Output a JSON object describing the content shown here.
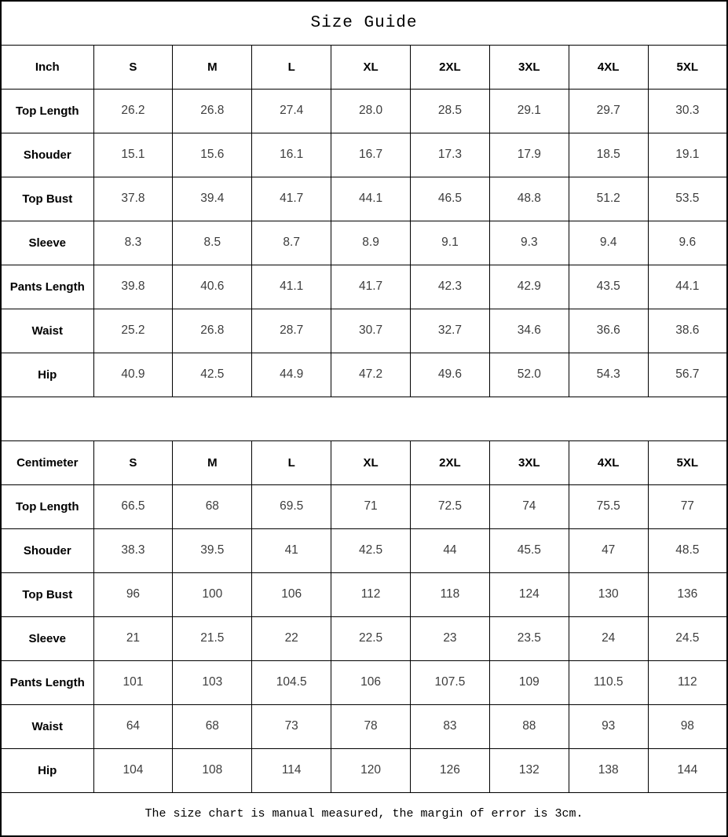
{
  "title": "Size Guide",
  "footer_note": "The size chart is manual measured, the margin of error is 3cm.",
  "colors": {
    "border": "#000000",
    "label_text": "#000000",
    "value_text": "#3d3d3d",
    "background": "#ffffff"
  },
  "tables": [
    {
      "unit_label": "Inch",
      "sizes": [
        "S",
        "M",
        "L",
        "XL",
        "2XL",
        "3XL",
        "4XL",
        "5XL"
      ],
      "rows": [
        {
          "label": "Top Length",
          "values": [
            "26.2",
            "26.8",
            "27.4",
            "28.0",
            "28.5",
            "29.1",
            "29.7",
            "30.3"
          ]
        },
        {
          "label": "Shouder",
          "values": [
            "15.1",
            "15.6",
            "16.1",
            "16.7",
            "17.3",
            "17.9",
            "18.5",
            "19.1"
          ]
        },
        {
          "label": "Top Bust",
          "values": [
            "37.8",
            "39.4",
            "41.7",
            "44.1",
            "46.5",
            "48.8",
            "51.2",
            "53.5"
          ]
        },
        {
          "label": "Sleeve",
          "values": [
            "8.3",
            "8.5",
            "8.7",
            "8.9",
            "9.1",
            "9.3",
            "9.4",
            "9.6"
          ]
        },
        {
          "label": "Pants Length",
          "values": [
            "39.8",
            "40.6",
            "41.1",
            "41.7",
            "42.3",
            "42.9",
            "43.5",
            "44.1"
          ]
        },
        {
          "label": "Waist",
          "values": [
            "25.2",
            "26.8",
            "28.7",
            "30.7",
            "32.7",
            "34.6",
            "36.6",
            "38.6"
          ]
        },
        {
          "label": "Hip",
          "values": [
            "40.9",
            "42.5",
            "44.9",
            "47.2",
            "49.6",
            "52.0",
            "54.3",
            "56.7"
          ]
        }
      ]
    },
    {
      "unit_label": "Centimeter",
      "sizes": [
        "S",
        "M",
        "L",
        "XL",
        "2XL",
        "3XL",
        "4XL",
        "5XL"
      ],
      "rows": [
        {
          "label": "Top Length",
          "values": [
            "66.5",
            "68",
            "69.5",
            "71",
            "72.5",
            "74",
            "75.5",
            "77"
          ]
        },
        {
          "label": "Shouder",
          "values": [
            "38.3",
            "39.5",
            "41",
            "42.5",
            "44",
            "45.5",
            "47",
            "48.5"
          ]
        },
        {
          "label": "Top Bust",
          "values": [
            "96",
            "100",
            "106",
            "112",
            "118",
            "124",
            "130",
            "136"
          ]
        },
        {
          "label": "Sleeve",
          "values": [
            "21",
            "21.5",
            "22",
            "22.5",
            "23",
            "23.5",
            "24",
            "24.5"
          ]
        },
        {
          "label": "Pants Length",
          "values": [
            "101",
            "103",
            "104.5",
            "106",
            "107.5",
            "109",
            "110.5",
            "112"
          ]
        },
        {
          "label": "Waist",
          "values": [
            "64",
            "68",
            "73",
            "78",
            "83",
            "88",
            "93",
            "98"
          ]
        },
        {
          "label": "Hip",
          "values": [
            "104",
            "108",
            "114",
            "120",
            "126",
            "132",
            "138",
            "144"
          ]
        }
      ]
    }
  ]
}
